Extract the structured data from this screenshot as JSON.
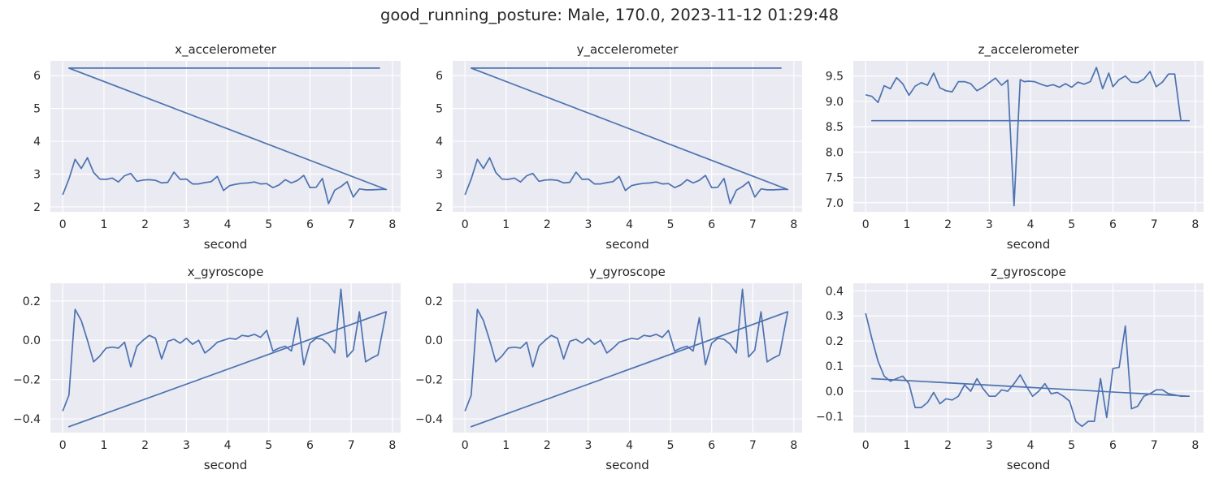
{
  "figure": {
    "title": "good_running_posture: Male, 170.0, 2023-11-12 01:29:48"
  },
  "style": {
    "line_color": "#4c72b0",
    "axes_bg": "#eaeaf2",
    "grid_color": "#ffffff"
  },
  "chart_data": [
    {
      "type": "line",
      "title": "x_accelerometer",
      "xlabel": "second",
      "ylabel": "",
      "xlim": [
        -0.3,
        8.2
      ],
      "ylim": [
        1.85,
        6.45
      ],
      "xticks": [
        0,
        1,
        2,
        3,
        4,
        5,
        6,
        7,
        8
      ],
      "yticks": [
        2,
        3,
        4,
        5,
        6
      ],
      "ytick_labels": [
        "2",
        "3",
        "4",
        "5",
        "6"
      ],
      "grid": true,
      "series": [
        {
          "x": [
            0,
            0.15,
            0.3,
            0.45,
            0.6,
            0.75,
            0.9,
            1.05,
            1.2,
            1.35,
            1.5,
            1.65,
            1.8,
            1.95,
            2.1,
            2.25,
            2.4,
            2.55,
            2.7,
            2.85,
            3.0,
            3.15,
            3.3,
            3.45,
            3.6,
            3.75,
            3.9,
            4.05,
            4.2,
            4.35,
            4.5,
            4.65,
            4.8,
            4.95,
            5.1,
            5.25,
            5.4,
            5.55,
            5.7,
            5.85,
            6.0,
            6.15,
            6.3,
            6.45,
            6.6,
            6.75,
            6.9,
            7.05,
            7.2,
            7.35,
            7.5,
            7.65,
            7.8,
            7.85,
            0.15,
            7.7
          ],
          "y": [
            2.37,
            2.85,
            3.45,
            3.17,
            3.5,
            3.05,
            2.85,
            2.84,
            2.88,
            2.76,
            2.95,
            3.02,
            2.78,
            2.82,
            2.83,
            2.81,
            2.73,
            2.75,
            3.06,
            2.84,
            2.85,
            2.7,
            2.7,
            2.74,
            2.77,
            2.93,
            2.5,
            2.65,
            2.69,
            2.72,
            2.73,
            2.76,
            2.7,
            2.71,
            2.59,
            2.67,
            2.83,
            2.73,
            2.81,
            2.96,
            2.59,
            2.6,
            2.87,
            2.1,
            2.51,
            2.62,
            2.77,
            2.3,
            2.55,
            2.52,
            2.52,
            2.53,
            2.54,
            2.53,
            6.23,
            6.23
          ]
        }
      ]
    },
    {
      "type": "line",
      "title": "y_accelerometer",
      "xlabel": "second",
      "ylabel": "",
      "xlim": [
        -0.3,
        8.2
      ],
      "ylim": [
        1.85,
        6.45
      ],
      "xticks": [
        0,
        1,
        2,
        3,
        4,
        5,
        6,
        7,
        8
      ],
      "yticks": [
        2,
        3,
        4,
        5,
        6
      ],
      "ytick_labels": [
        "2",
        "3",
        "4",
        "5",
        "6"
      ],
      "grid": true,
      "series": [
        {
          "x": [
            0,
            0.15,
            0.3,
            0.45,
            0.6,
            0.75,
            0.9,
            1.05,
            1.2,
            1.35,
            1.5,
            1.65,
            1.8,
            1.95,
            2.1,
            2.25,
            2.4,
            2.55,
            2.7,
            2.85,
            3.0,
            3.15,
            3.3,
            3.45,
            3.6,
            3.75,
            3.9,
            4.05,
            4.2,
            4.35,
            4.5,
            4.65,
            4.8,
            4.95,
            5.1,
            5.25,
            5.4,
            5.55,
            5.7,
            5.85,
            6.0,
            6.15,
            6.3,
            6.45,
            6.6,
            6.75,
            6.9,
            7.05,
            7.2,
            7.35,
            7.5,
            7.65,
            7.8,
            7.85,
            0.15,
            7.7
          ],
          "y": [
            2.37,
            2.85,
            3.45,
            3.17,
            3.5,
            3.05,
            2.85,
            2.84,
            2.88,
            2.76,
            2.95,
            3.02,
            2.78,
            2.82,
            2.83,
            2.81,
            2.73,
            2.75,
            3.06,
            2.84,
            2.85,
            2.7,
            2.7,
            2.74,
            2.77,
            2.93,
            2.5,
            2.65,
            2.69,
            2.72,
            2.73,
            2.76,
            2.7,
            2.71,
            2.59,
            2.67,
            2.83,
            2.73,
            2.81,
            2.96,
            2.59,
            2.6,
            2.87,
            2.1,
            2.51,
            2.62,
            2.77,
            2.3,
            2.55,
            2.52,
            2.52,
            2.53,
            2.54,
            2.53,
            6.23,
            6.23
          ]
        }
      ]
    },
    {
      "type": "line",
      "title": "z_accelerometer",
      "xlabel": "second",
      "ylabel": "",
      "xlim": [
        -0.3,
        8.2
      ],
      "ylim": [
        6.82,
        9.8
      ],
      "xticks": [
        0,
        1,
        2,
        3,
        4,
        5,
        6,
        7,
        8
      ],
      "yticks": [
        7.0,
        7.5,
        8.0,
        8.5,
        9.0,
        9.5
      ],
      "ytick_labels": [
        "7.0",
        "7.5",
        "8.0",
        "8.5",
        "9.0",
        "9.5"
      ],
      "grid": true,
      "series": [
        {
          "x": [
            0,
            0.15,
            0.3,
            0.45,
            0.6,
            0.75,
            0.9,
            1.05,
            1.2,
            1.35,
            1.5,
            1.65,
            1.8,
            1.95,
            2.1,
            2.25,
            2.4,
            2.55,
            2.7,
            2.85,
            3.0,
            3.15,
            3.3,
            3.45,
            3.6,
            3.75,
            3.85,
            3.95,
            4.1,
            4.25,
            4.4,
            4.55,
            4.7,
            4.85,
            5.0,
            5.15,
            5.3,
            5.45,
            5.6,
            5.75,
            5.9,
            6.0,
            6.15,
            6.3,
            6.45,
            6.6,
            6.75,
            6.9,
            7.05,
            7.2,
            7.35,
            7.5,
            7.65,
            7.85,
            0.15,
            7.7
          ],
          "y": [
            9.13,
            9.1,
            8.98,
            9.31,
            9.25,
            9.47,
            9.35,
            9.12,
            9.3,
            9.37,
            9.32,
            9.56,
            9.27,
            9.21,
            9.19,
            9.39,
            9.39,
            9.35,
            9.21,
            9.28,
            9.37,
            9.46,
            9.32,
            9.42,
            6.94,
            9.43,
            9.39,
            9.4,
            9.39,
            9.34,
            9.3,
            9.33,
            9.28,
            9.35,
            9.28,
            9.38,
            9.34,
            9.39,
            9.67,
            9.25,
            9.56,
            9.29,
            9.43,
            9.5,
            9.38,
            9.37,
            9.44,
            9.59,
            9.29,
            9.38,
            9.54,
            9.54,
            8.62,
            8.62,
            8.62,
            8.62
          ]
        }
      ]
    },
    {
      "type": "line",
      "title": "x_gyroscope",
      "xlabel": "second",
      "ylabel": "",
      "xlim": [
        -0.3,
        8.2
      ],
      "ylim": [
        -0.47,
        0.29
      ],
      "xticks": [
        0,
        1,
        2,
        3,
        4,
        5,
        6,
        7,
        8
      ],
      "yticks": [
        -0.4,
        -0.2,
        0.0,
        0.2
      ],
      "ytick_labels": [
        "−0.4",
        "−0.2",
        "0.0",
        "0.2"
      ],
      "grid": true,
      "series": [
        {
          "x": [
            0,
            0.15,
            0.3,
            0.45,
            0.6,
            0.75,
            0.9,
            1.05,
            1.2,
            1.35,
            1.5,
            1.65,
            1.8,
            1.95,
            2.1,
            2.25,
            2.4,
            2.55,
            2.7,
            2.85,
            3.0,
            3.15,
            3.3,
            3.45,
            3.6,
            3.75,
            3.9,
            4.05,
            4.2,
            4.35,
            4.5,
            4.65,
            4.8,
            4.95,
            5.1,
            5.25,
            5.4,
            5.55,
            5.7,
            5.85,
            6.0,
            6.15,
            6.3,
            6.45,
            6.6,
            6.75,
            6.9,
            7.05,
            7.2,
            7.35,
            7.5,
            7.65,
            7.85,
            0.15,
            7.85
          ],
          "y": [
            -0.36,
            -0.28,
            0.157,
            0.1,
            0.0,
            -0.11,
            -0.08,
            -0.04,
            -0.035,
            -0.04,
            -0.01,
            -0.135,
            -0.03,
            0.0,
            0.025,
            0.01,
            -0.095,
            -0.005,
            0.005,
            -0.015,
            0.01,
            -0.02,
            0.0,
            -0.065,
            -0.04,
            -0.01,
            0.0,
            0.01,
            0.005,
            0.025,
            0.02,
            0.03,
            0.015,
            0.05,
            -0.055,
            -0.04,
            -0.03,
            -0.055,
            0.115,
            -0.125,
            -0.015,
            0.01,
            0.005,
            -0.02,
            -0.065,
            0.26,
            -0.085,
            -0.05,
            0.145,
            -0.11,
            -0.09,
            -0.075,
            0.145,
            -0.44,
            0.145
          ]
        }
      ]
    },
    {
      "type": "line",
      "title": "y_gyroscope",
      "xlabel": "second",
      "ylabel": "",
      "xlim": [
        -0.3,
        8.2
      ],
      "ylim": [
        -0.47,
        0.29
      ],
      "xticks": [
        0,
        1,
        2,
        3,
        4,
        5,
        6,
        7,
        8
      ],
      "yticks": [
        -0.4,
        -0.2,
        0.0,
        0.2
      ],
      "ytick_labels": [
        "−0.4",
        "−0.2",
        "0.0",
        "0.2"
      ],
      "grid": true,
      "series": [
        {
          "x": [
            0,
            0.15,
            0.3,
            0.45,
            0.6,
            0.75,
            0.9,
            1.05,
            1.2,
            1.35,
            1.5,
            1.65,
            1.8,
            1.95,
            2.1,
            2.25,
            2.4,
            2.55,
            2.7,
            2.85,
            3.0,
            3.15,
            3.3,
            3.45,
            3.6,
            3.75,
            3.9,
            4.05,
            4.2,
            4.35,
            4.5,
            4.65,
            4.8,
            4.95,
            5.1,
            5.25,
            5.4,
            5.55,
            5.7,
            5.85,
            6.0,
            6.15,
            6.3,
            6.45,
            6.6,
            6.75,
            6.9,
            7.05,
            7.2,
            7.35,
            7.5,
            7.65,
            7.85,
            0.15,
            7.85
          ],
          "y": [
            -0.36,
            -0.28,
            0.157,
            0.1,
            0.0,
            -0.11,
            -0.08,
            -0.04,
            -0.035,
            -0.04,
            -0.01,
            -0.135,
            -0.03,
            0.0,
            0.025,
            0.01,
            -0.095,
            -0.005,
            0.005,
            -0.015,
            0.01,
            -0.02,
            0.0,
            -0.065,
            -0.04,
            -0.01,
            0.0,
            0.01,
            0.005,
            0.025,
            0.02,
            0.03,
            0.015,
            0.05,
            -0.055,
            -0.04,
            -0.03,
            -0.055,
            0.115,
            -0.125,
            -0.015,
            0.01,
            0.005,
            -0.02,
            -0.065,
            0.26,
            -0.085,
            -0.05,
            0.145,
            -0.11,
            -0.09,
            -0.075,
            0.145,
            -0.44,
            0.145
          ]
        }
      ]
    },
    {
      "type": "line",
      "title": "z_gyroscope",
      "xlabel": "second",
      "ylabel": "",
      "xlim": [
        -0.3,
        8.2
      ],
      "ylim": [
        -0.165,
        0.43
      ],
      "xticks": [
        0,
        1,
        2,
        3,
        4,
        5,
        6,
        7,
        8
      ],
      "yticks": [
        -0.1,
        0.0,
        0.1,
        0.2,
        0.3,
        0.4
      ],
      "ytick_labels": [
        "−0.1",
        "0.0",
        "0.1",
        "0.2",
        "0.3",
        "0.4"
      ],
      "grid": true,
      "series": [
        {
          "x": [
            0,
            0.15,
            0.3,
            0.45,
            0.6,
            0.75,
            0.9,
            1.05,
            1.2,
            1.35,
            1.5,
            1.65,
            1.8,
            1.95,
            2.1,
            2.25,
            2.4,
            2.55,
            2.7,
            2.85,
            3.0,
            3.15,
            3.3,
            3.45,
            3.6,
            3.75,
            3.9,
            4.05,
            4.2,
            4.35,
            4.5,
            4.65,
            4.8,
            4.95,
            5.1,
            5.25,
            5.4,
            5.55,
            5.7,
            5.85,
            6.0,
            6.15,
            6.3,
            6.45,
            6.6,
            6.75,
            6.9,
            7.05,
            7.2,
            7.35,
            7.5,
            7.65,
            7.85,
            0.15,
            7.85
          ],
          "y": [
            0.31,
            0.21,
            0.12,
            0.06,
            0.04,
            0.05,
            0.06,
            0.03,
            -0.065,
            -0.065,
            -0.045,
            -0.005,
            -0.05,
            -0.03,
            -0.035,
            -0.02,
            0.025,
            0.0,
            0.05,
            0.01,
            -0.02,
            -0.02,
            0.005,
            0.0,
            0.03,
            0.065,
            0.02,
            -0.02,
            0.0,
            0.03,
            -0.01,
            -0.005,
            -0.02,
            -0.04,
            -0.12,
            -0.14,
            -0.12,
            -0.12,
            0.05,
            -0.105,
            0.09,
            0.095,
            0.26,
            -0.07,
            -0.06,
            -0.02,
            -0.01,
            0.005,
            0.005,
            -0.01,
            -0.015,
            -0.02,
            -0.02,
            0.05,
            -0.02
          ]
        }
      ]
    }
  ]
}
